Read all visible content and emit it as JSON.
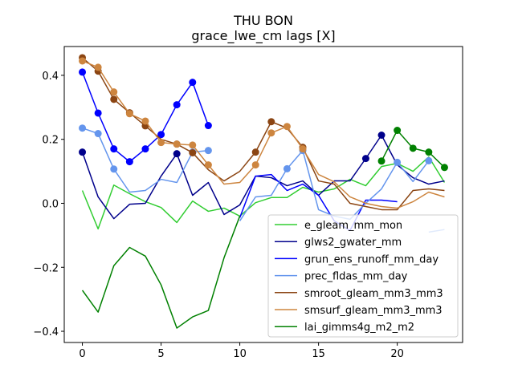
{
  "chart_data": {
    "type": "line",
    "title": "THU BON",
    "subtitle": "grace_lwe_cm lags [X]",
    "xlabel": "",
    "ylabel": "",
    "xlim": [
      -1.15,
      24.15
    ],
    "ylim": [
      -0.435,
      0.49
    ],
    "xticks": [
      0,
      5,
      10,
      15,
      20
    ],
    "yticks": [
      -0.4,
      -0.2,
      0.0,
      0.2,
      0.4
    ],
    "ytick_labels": [
      "−0.4",
      "−0.2",
      "0.0",
      "0.2",
      "0.4"
    ],
    "grid": false,
    "legend_position": "lower-right",
    "x": [
      0,
      1,
      2,
      3,
      4,
      5,
      6,
      7,
      8,
      9,
      10,
      11,
      12,
      13,
      14,
      15,
      16,
      17,
      18,
      19,
      20,
      21,
      22,
      23
    ],
    "series": [
      {
        "name": "e_gleam_mm_mon",
        "color": "#32cd32",
        "marker_color": "#32cd32",
        "values": [
          0.04,
          -0.08,
          0.057,
          0.03,
          0.005,
          -0.013,
          -0.06,
          0.007,
          -0.025,
          -0.015,
          -0.04,
          0.002,
          0.018,
          0.018,
          0.05,
          0.035,
          0.045,
          0.075,
          0.055,
          0.115,
          0.125,
          0.1,
          0.145,
          0.065
        ],
        "markers": []
      },
      {
        "name": "glws2_gwater_mm",
        "color": "#00008b",
        "marker_color": "#00008b",
        "values": [
          0.16,
          0.02,
          -0.048,
          -0.003,
          0.0,
          0.085,
          0.155,
          0.025,
          0.065,
          -0.035,
          -0.005,
          0.085,
          0.08,
          0.055,
          0.07,
          0.025,
          0.07,
          0.07,
          0.14,
          0.213,
          0.12,
          0.08,
          0.06,
          0.07
        ],
        "markers": [
          0,
          6,
          18,
          19
        ]
      },
      {
        "name": "grun_ens_runoff_mm_day",
        "color": "#0000ff",
        "marker_color": "#0000ff",
        "values": [
          0.41,
          0.282,
          0.17,
          0.13,
          0.17,
          0.215,
          0.308,
          0.378,
          0.243,
          null,
          -0.045,
          0.085,
          0.09,
          0.04,
          0.06,
          0.025,
          -0.055,
          -0.085,
          0.01,
          0.01,
          0.005,
          null,
          null,
          null
        ],
        "markers": [
          0,
          1,
          2,
          3,
          4,
          5,
          6,
          7,
          8
        ]
      },
      {
        "name": "prec_fldas_mm_day",
        "color": "#6495ed",
        "marker_color": "#6495ed",
        "values": [
          0.235,
          0.218,
          0.107,
          0.035,
          0.04,
          0.075,
          0.065,
          0.16,
          0.165,
          null,
          -0.055,
          0.02,
          0.025,
          0.108,
          0.165,
          -0.02,
          -0.04,
          -0.05,
          0.0,
          0.045,
          0.128,
          0.068,
          0.133,
          null
        ],
        "markers": [
          0,
          1,
          2,
          7,
          8,
          13,
          14,
          20,
          22
        ]
      },
      {
        "name": "smroot_gleam_mm3_mm3",
        "color": "#8b4513",
        "marker_color": "#8b4513",
        "values": [
          0.455,
          0.413,
          0.325,
          0.283,
          0.242,
          0.2,
          0.185,
          0.158,
          0.105,
          0.07,
          0.1,
          0.16,
          0.255,
          0.235,
          0.175,
          0.07,
          0.06,
          0.0,
          -0.01,
          -0.02,
          -0.02,
          0.04,
          0.045,
          0.04
        ],
        "markers": [
          0,
          1,
          2,
          3,
          4,
          6,
          7,
          11,
          12,
          14
        ]
      },
      {
        "name": "smsurf_gleam_mm3_mm3",
        "color": "#cd853f",
        "marker_color": "#cd853f",
        "values": [
          0.445,
          0.425,
          0.348,
          0.28,
          0.257,
          0.19,
          0.185,
          0.182,
          0.12,
          0.06,
          0.065,
          0.12,
          0.22,
          0.24,
          0.17,
          0.09,
          0.067,
          0.02,
          0.0,
          -0.01,
          -0.015,
          0.005,
          0.035,
          0.02
        ],
        "markers": [
          0,
          1,
          2,
          3,
          4,
          5,
          6,
          7,
          8,
          11,
          12,
          13,
          14
        ]
      },
      {
        "name": "",
        "color": "#6495ed",
        "marker_color": "#6495ed",
        "values": [
          null,
          null,
          null,
          null,
          null,
          null,
          null,
          null,
          null,
          null,
          null,
          null,
          null,
          null,
          null,
          null,
          null,
          null,
          null,
          null,
          null,
          null,
          -0.09,
          -0.082
        ],
        "markers": []
      },
      {
        "name": "lai_gimms4g_m2_m2",
        "color": "#008000",
        "marker_color": "#008000",
        "values": [
          -0.272,
          -0.34,
          -0.195,
          -0.138,
          -0.165,
          -0.255,
          -0.39,
          -0.355,
          -0.335,
          -0.17,
          -0.04,
          null,
          null,
          null,
          null,
          null,
          null,
          null,
          null,
          0.132,
          0.228,
          0.172,
          0.16,
          0.112
        ],
        "markers": [
          19,
          20,
          21,
          22,
          23
        ]
      }
    ],
    "legend_order": [
      0,
      1,
      2,
      3,
      4,
      5,
      7
    ]
  }
}
